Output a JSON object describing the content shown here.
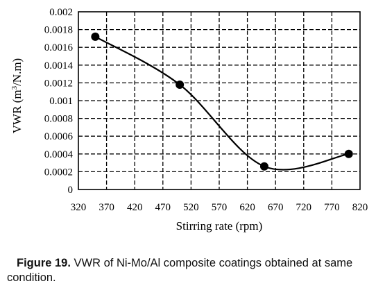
{
  "chart_data": {
    "type": "line",
    "xlabel": "Stirring rate (rpm)",
    "ylabel_main": "VWR (m",
    "ylabel_sup": "3",
    "ylabel_tail": "/N.m)",
    "xlim": [
      320,
      820
    ],
    "ylim": [
      0,
      0.002
    ],
    "x_ticks": [
      320,
      370,
      420,
      470,
      520,
      570,
      620,
      670,
      720,
      770,
      820
    ],
    "y_ticks": [
      0,
      0.0002,
      0.0004,
      0.0006,
      0.0008,
      0.001,
      0.0012,
      0.0014,
      0.0016,
      0.0018,
      0.002
    ],
    "y_tick_labels": [
      "0",
      "0.0002",
      "0.0004",
      "0.0006",
      "0.0008",
      "0.001",
      "0.0012",
      "0.0014",
      "0.0016",
      "0.0018",
      "0.002"
    ],
    "grid": true,
    "grid_style": "dashed",
    "series": [
      {
        "x": [
          350,
          500,
          650,
          800
        ],
        "y": [
          0.00172,
          0.00118,
          0.00026,
          0.0004
        ],
        "color": "#000000",
        "marker": "circle",
        "smooth": true
      }
    ]
  },
  "caption": {
    "label": "Figure 19.",
    "text": " VWR of Ni-Mo/Al composite coatings obtained at same condition."
  }
}
